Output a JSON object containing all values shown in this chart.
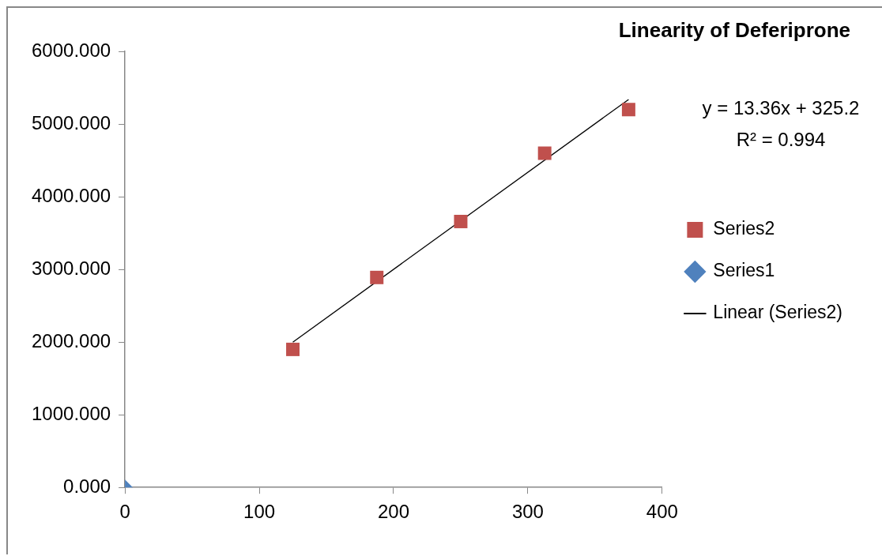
{
  "chart_data": {
    "type": "scatter",
    "title": "Linearity of Deferiprone",
    "series": [
      {
        "name": "Series2",
        "color": "#c0504d",
        "marker": "square",
        "x": [
          125,
          187.5,
          250,
          312.5,
          375
        ],
        "values": [
          1900,
          2890,
          3660,
          4600,
          5200
        ]
      },
      {
        "name": "Series1",
        "color": "#4f81bd",
        "marker": "diamond",
        "x": [
          0
        ],
        "values": [
          0
        ]
      },
      {
        "name": "Linear (Series2)",
        "type": "line",
        "color": "#000000",
        "marker": "none",
        "line_style": "solid",
        "x": [
          125,
          375
        ],
        "values": [
          2000,
          5340
        ]
      }
    ],
    "xlim": [
      0,
      400
    ],
    "xticks": [
      0,
      100,
      200,
      300,
      400
    ],
    "ylim": [
      0,
      6000
    ],
    "yticks": [
      {
        "value": 0,
        "label": "0.000"
      },
      {
        "value": 1000,
        "label": "1000.000"
      },
      {
        "value": 2000,
        "label": "2000.000"
      },
      {
        "value": 3000,
        "label": "3000.000"
      },
      {
        "value": 4000,
        "label": "4000.000"
      },
      {
        "value": 5000,
        "label": "5000.000"
      },
      {
        "value": 6000,
        "label": "6000.000"
      }
    ],
    "grid": false,
    "legend": "right",
    "annotations": [
      "y = 13.36x + 325.2",
      "R² = 0.994"
    ]
  }
}
